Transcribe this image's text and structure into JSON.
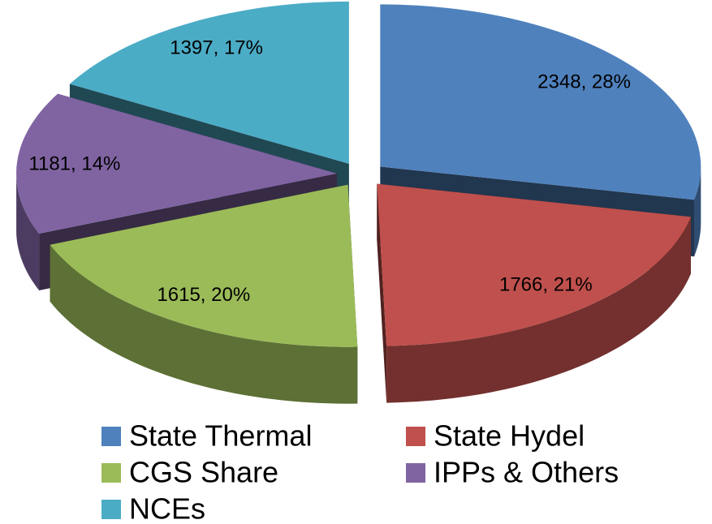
{
  "chart_data": {
    "type": "pie3d",
    "categories": [
      "State Thermal",
      "State Hydel",
      "CGS Share",
      "IPPs & Others",
      "NCEs"
    ],
    "values": [
      2348,
      1766,
      1615,
      1181,
      1397
    ],
    "value_labels": [
      "2348, 28%",
      "1766, 21%",
      "1615, 20%",
      "1181, 14%",
      "1397, 17%"
    ],
    "colors": [
      "#4f81bd",
      "#c0504d",
      "#9bbb59",
      "#8064a2",
      "#4bacc6"
    ],
    "legend": "bottom"
  }
}
